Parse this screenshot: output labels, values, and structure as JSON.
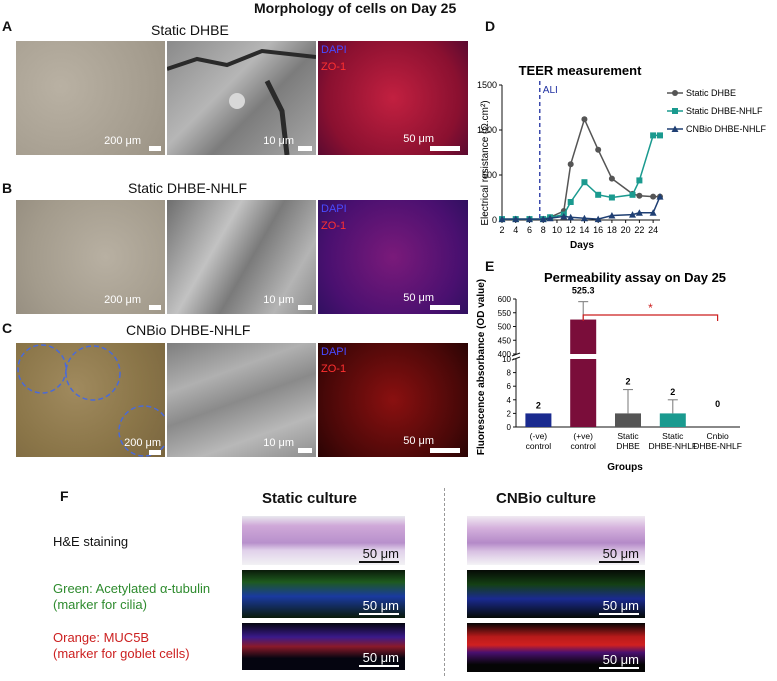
{
  "figure": {
    "title": "Morphology of cells on Day 25",
    "panels": {
      "A": {
        "letter": "A",
        "title": "Static DHBE",
        "scales": [
          "200 μm",
          "10 μm",
          "50 μm"
        ],
        "stain_labels": [
          "DAPI",
          "ZO-1"
        ]
      },
      "B": {
        "letter": "B",
        "title": "Static DHBE-NHLF",
        "scales": [
          "200 μm",
          "10 μm",
          "50 μm"
        ],
        "stain_labels": [
          "DAPI",
          "ZO-1"
        ]
      },
      "C": {
        "letter": "C",
        "title": "CNBio DHBE-NHLF",
        "scales": [
          "200 μm",
          "10 μm",
          "50 μm"
        ],
        "stain_labels": [
          "DAPI",
          "ZO-1"
        ]
      }
    },
    "colors": {
      "gray_series": "#555555",
      "teal_series": "#1a9a8f",
      "navy_series": "#1f3f73",
      "ali_line": "#1e2fa0",
      "red_annot": "#cc1f1f",
      "maroon_bar": "#7a0d3a"
    }
  },
  "chart_data": [
    {
      "panel": "D",
      "type": "line",
      "title": "TEER measurement",
      "xlabel": "Days",
      "ylabel": "Electrical resistance (Ω.cm²)",
      "xlim": [
        2,
        25
      ],
      "ylim": [
        0,
        1500
      ],
      "x_ticks": [
        "2",
        "4",
        "6",
        "8",
        "10",
        "12",
        "14",
        "16",
        "18",
        "20",
        "22",
        "24"
      ],
      "y_ticks": [
        "0",
        "500",
        "1000",
        "1500"
      ],
      "annotation": "ALI",
      "annotation_x": 7.5,
      "legend_position": "right",
      "series": [
        {
          "name": "Static DHBE",
          "marker": "circle",
          "color": "#555555",
          "x": [
            2,
            4,
            6,
            8,
            9,
            11,
            12,
            14,
            16,
            18,
            21,
            22,
            24,
            25
          ],
          "y": [
            10,
            10,
            10,
            10,
            30,
            100,
            620,
            1120,
            780,
            460,
            290,
            270,
            260,
            260
          ]
        },
        {
          "name": "Static DHBE-NHLF",
          "marker": "square",
          "color": "#1a9a8f",
          "x": [
            2,
            4,
            6,
            8,
            9,
            11,
            12,
            14,
            16,
            18,
            21,
            22,
            24,
            25
          ],
          "y": [
            10,
            10,
            10,
            10,
            30,
            60,
            200,
            420,
            280,
            250,
            280,
            440,
            940,
            940
          ]
        },
        {
          "name": "CNBio DHBE-NHLF",
          "marker": "triangle",
          "color": "#1f3f73",
          "x": [
            2,
            4,
            6,
            8,
            9,
            11,
            12,
            14,
            16,
            18,
            21,
            22,
            24,
            25
          ],
          "y": [
            10,
            10,
            10,
            10,
            20,
            40,
            30,
            20,
            10,
            50,
            60,
            80,
            80,
            260
          ]
        }
      ]
    },
    {
      "panel": "E",
      "type": "bar",
      "title": "Permeability assay on Day 25",
      "xlabel": "Groups",
      "ylabel": "Fluorescence absorbance (OD value)",
      "categories": [
        [
          "(-ve)",
          "control"
        ],
        [
          "(+ve)",
          "control"
        ],
        [
          "Static",
          "DHBE"
        ],
        [
          "Static",
          "DHBE-NHLF"
        ],
        [
          "Cnbio",
          "DHBE-NHLF"
        ]
      ],
      "values": [
        2,
        525.3,
        2,
        2,
        0
      ],
      "value_labels": [
        "2",
        "525.3",
        "2",
        "2",
        "0"
      ],
      "errors": [
        0,
        65,
        3.5,
        2,
        0
      ],
      "colors": [
        "#1a2a8f",
        "#7a0d3a",
        "#555555",
        "#1a9a8f",
        "#ffffff"
      ],
      "y_ticks_lower": [
        "0",
        "2",
        "4",
        "6",
        "8",
        "10"
      ],
      "y_ticks_upper": [
        "400",
        "450",
        "500",
        "550",
        "600"
      ],
      "significance": "*",
      "significance_between": [
        "(+ve) control",
        "Cnbio DHBE-NHLF"
      ]
    }
  ],
  "panelF": {
    "letter": "F",
    "col_headers": [
      "Static culture",
      "CNBio culture"
    ],
    "rows": [
      {
        "label": "H&E staining",
        "color": "#111111"
      },
      {
        "label": "Green: Acetylated α-tubulin",
        "label2": "(marker for cilia)",
        "color": "#2e8b2e"
      },
      {
        "label": "Orange: MUC5B",
        "label2": "(marker for goblet cells)",
        "color": "#cc1f1f"
      }
    ],
    "scale": "50 μm"
  }
}
